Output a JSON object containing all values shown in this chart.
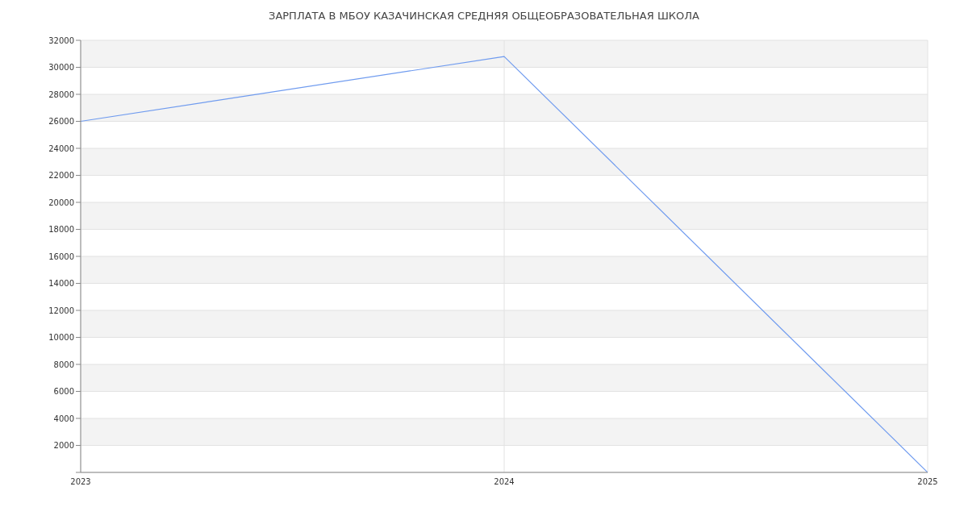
{
  "chart_data": {
    "type": "line",
    "title": "ЗАРПЛАТА В МБОУ КАЗАЧИНСКАЯ СРЕДНЯЯ ОБЩЕОБРАЗОВАТЕЛЬНАЯ ШКОЛА",
    "categories": [
      "2023",
      "2024",
      "2025"
    ],
    "series": [
      {
        "color": "#6f9bef",
        "values": [
          26000,
          30800,
          0
        ]
      }
    ],
    "ylim": [
      0,
      32000
    ],
    "yticks": [
      {
        "value": 0,
        "label": null
      },
      2000,
      4000,
      6000,
      8000,
      10000,
      12000,
      14000,
      16000,
      18000,
      20000,
      22000,
      24000,
      26000,
      28000,
      30000,
      32000
    ],
    "grid": true,
    "marker": "none",
    "line_style": "solid",
    "legend": false
  }
}
